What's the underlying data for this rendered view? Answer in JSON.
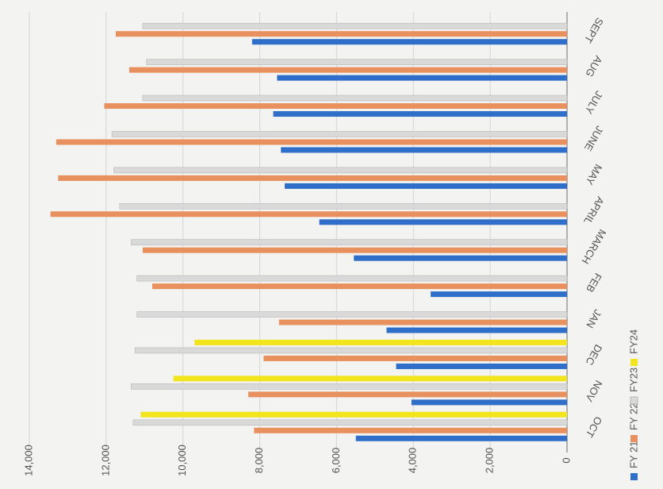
{
  "chart_data": {
    "type": "bar",
    "orientation": "horizontal-rotated",
    "categories": [
      "OCT",
      "NOV",
      "DEC",
      "JAN",
      "FEB",
      "MARCH",
      "APRIL",
      "MAY",
      "JUNE",
      "JULY",
      "AUG",
      "SEPT"
    ],
    "series": [
      {
        "name": "FY 21",
        "color": "#2f6fc9",
        "values": [
          5500,
          4050,
          4450,
          4700,
          3550,
          5550,
          6450,
          7350,
          7450,
          7650,
          7550,
          8200
        ]
      },
      {
        "name": "FY 22",
        "color": "#e8915e",
        "values": [
          8150,
          8300,
          7900,
          7500,
          10800,
          11050,
          13450,
          13250,
          13300,
          12050,
          11400,
          11750
        ]
      },
      {
        "name": "FY23",
        "color": "#d9d9d9",
        "values": [
          11300,
          11350,
          11250,
          11200,
          11200,
          11350,
          11650,
          11800,
          11850,
          11050,
          10950,
          11050
        ]
      },
      {
        "name": "FY24",
        "color": "#f2e51e",
        "values": [
          11100,
          10250,
          9700,
          null,
          null,
          null,
          null,
          null,
          null,
          null,
          null,
          null
        ]
      }
    ],
    "ylim": [
      0,
      14000
    ],
    "yticks": [
      0,
      {
        "value": 2000,
        "label": "2,000"
      },
      {
        "value": 4000,
        "label": "4,000"
      },
      {
        "value": 6000,
        "label": "6,000"
      },
      {
        "value": 8000,
        "label": "8,000"
      },
      {
        "value": 10000,
        "label": "10,000"
      },
      {
        "value": 12000,
        "label": "12,000"
      },
      {
        "value": 14000,
        "label": "14,000"
      }
    ],
    "grid": true
  }
}
